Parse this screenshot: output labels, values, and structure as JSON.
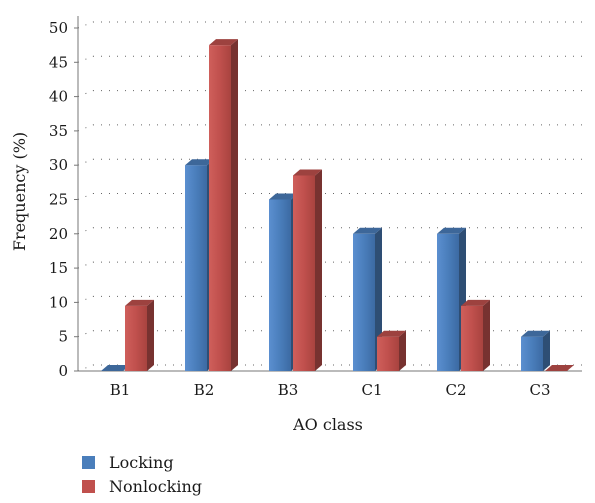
{
  "chart_data": {
    "type": "bar",
    "style": "3d-clustered-column",
    "title": "",
    "xlabel": "AO class",
    "ylabel": "Frequency (%)",
    "ylim": [
      0,
      50
    ],
    "yticks": [
      0,
      5,
      10,
      15,
      20,
      25,
      30,
      35,
      40,
      45,
      50
    ],
    "categories": [
      "B1",
      "B2",
      "B3",
      "C1",
      "C2",
      "C3"
    ],
    "series": [
      {
        "name": "Locking",
        "values": [
          0,
          30,
          25,
          20,
          20,
          5
        ],
        "color": "#4a7ebb"
      },
      {
        "name": "Nonlocking",
        "values": [
          9.5,
          47.5,
          28.5,
          5,
          9.5,
          0
        ],
        "color": "#c0504d"
      }
    ],
    "grid": "horizontal-dotted",
    "legend_position": "bottom-left"
  }
}
